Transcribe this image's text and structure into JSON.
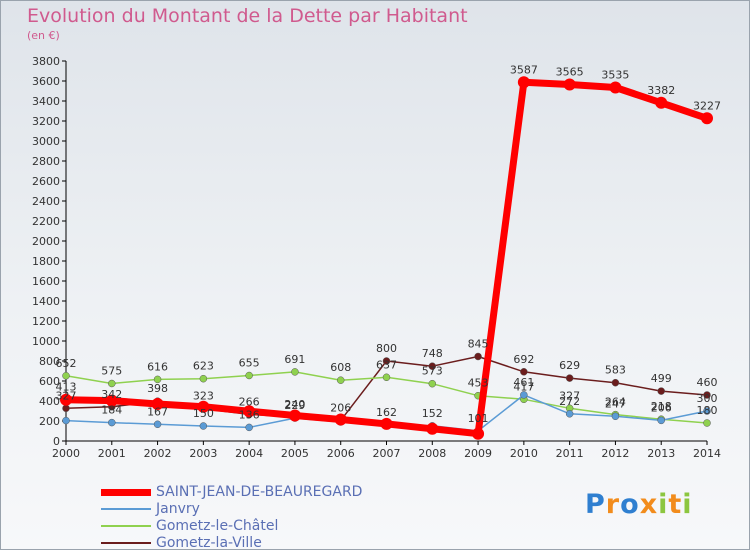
{
  "title": "Evolution du Montant de la Dette par Habitant",
  "unit": "(en €)",
  "logo": "Proxiti",
  "chart_data": {
    "type": "line",
    "title": "Evolution du Montant de la Dette par Habitant",
    "ylabel": "(en €)",
    "x": [
      2000,
      2001,
      2002,
      2003,
      2004,
      2005,
      2006,
      2007,
      2008,
      2009,
      2010,
      2011,
      2012,
      2013,
      2014
    ],
    "ylim": [
      0,
      3800
    ],
    "yticks": [
      0,
      200,
      400,
      600,
      800,
      1000,
      1200,
      1400,
      1600,
      1800,
      2000,
      2200,
      2400,
      2600,
      2800,
      3000,
      3200,
      3400,
      3600,
      3800
    ],
    "grid": false,
    "legend_position": "bottom-left",
    "series": [
      {
        "name": "SAINT-JEAN-DE-BEAUREGARD",
        "color": "#ff0000",
        "values": [
          413,
          404,
          370,
          343,
          298,
          255,
          215,
          171,
          122,
          73,
          3587,
          3565,
          3535,
          3382,
          3227
        ],
        "labels": [
          "413",
          "",
          "",
          "",
          "",
          "",
          "",
          "",
          "",
          "",
          "3587",
          "3565",
          "3535",
          "3382",
          "3227"
        ]
      },
      {
        "name": "Janvry",
        "color": "#5b9bd5",
        "values": [
          204,
          184,
          167,
          150,
          136,
          229,
          190,
          162,
          152,
          101,
          461,
          272,
          247,
          206,
          300
        ],
        "labels": [
          "",
          "184",
          "167",
          "150",
          "136",
          "229",
          "",
          "162",
          "152",
          "101",
          "461",
          "272",
          "247",
          "206",
          "300"
        ]
      },
      {
        "name": "Gometz-le-Châtel",
        "color": "#8fd14f",
        "values": [
          652,
          575,
          616,
          623,
          655,
          691,
          608,
          637,
          573,
          453,
          417,
          327,
          264,
          218,
          180
        ],
        "labels": [
          "652",
          "575",
          "616",
          "623",
          "655",
          "691",
          "608",
          "637",
          "573",
          "453",
          "417",
          "327",
          "264",
          "218",
          "180"
        ]
      },
      {
        "name": "Gometz-la-Ville",
        "color": "#6b1d1d",
        "values": [
          327,
          342,
          398,
          323,
          266,
          240,
          206,
          800,
          748,
          845,
          692,
          629,
          583,
          499,
          460
        ],
        "labels": [
          "327",
          "342",
          "398",
          "323",
          "266",
          "240",
          "206",
          "800",
          "748",
          "845",
          "692",
          "629",
          "583",
          "499",
          "460"
        ]
      }
    ]
  }
}
